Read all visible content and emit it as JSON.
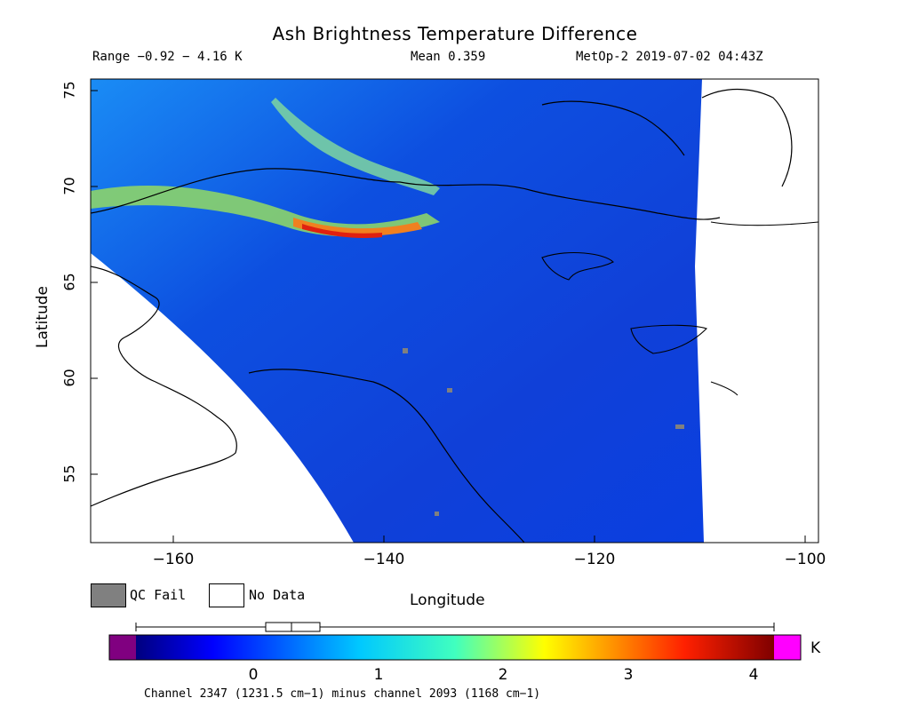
{
  "title": "Ash Brightness Temperature Difference",
  "header": {
    "range": "Range −0.92 − 4.16 K",
    "mean": "Mean 0.359",
    "satellite": "MetOp-2 2019-07-02 04:43Z"
  },
  "map": {
    "xlabel": "Longitude",
    "ylabel": "Latitude",
    "x_ticks": [
      "−160",
      "−140",
      "−120",
      "−100"
    ],
    "y_ticks": [
      "55",
      "60",
      "65",
      "70",
      "75"
    ],
    "lon_range": [
      -167,
      -99.5
    ],
    "lat_range": [
      51.5,
      75.5
    ]
  },
  "legend": {
    "qc_fail": "QC Fail",
    "no_data": "No Data",
    "qc_color": "#808080"
  },
  "colorbar": {
    "ticks": [
      "0",
      "1",
      "2",
      "3",
      "4"
    ],
    "unit": "K",
    "under_color": "#800080",
    "over_color": "#ff00ff",
    "range": [
      -0.92,
      4.16
    ]
  },
  "footer": "Channel 2347 (1231.5 cm−1) minus channel 2093 (1168 cm−1)"
}
